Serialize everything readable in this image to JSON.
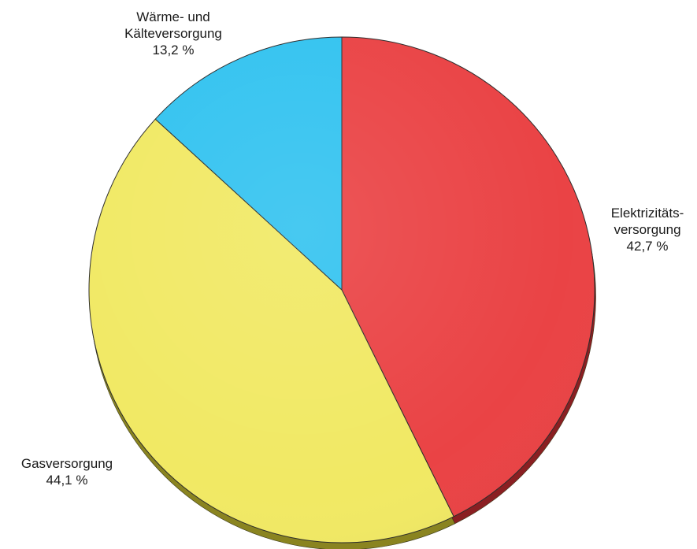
{
  "chart_data": {
    "type": "pie",
    "title": "",
    "unit": "%",
    "start_angle": "12 o'clock",
    "direction": "clockwise",
    "style": "3d-extruded",
    "slices": [
      {
        "label_lines": [
          "Elektrizitäts-",
          "versorgung"
        ],
        "value": 42.7,
        "value_label": "42,7 %",
        "color": "#ea4345",
        "side_color": "#8a1f22"
      },
      {
        "label_lines": [
          "Gasversorgung"
        ],
        "value": 44.1,
        "value_label": "44,1 %",
        "color": "#f1e964",
        "side_color": "#8a8420"
      },
      {
        "label_lines": [
          "Wärme- und",
          "Kälteversorgung"
        ],
        "value": 13.2,
        "value_label": "13,2 %",
        "color": "#33c3f0",
        "side_color": "#1a7fa1"
      }
    ]
  }
}
